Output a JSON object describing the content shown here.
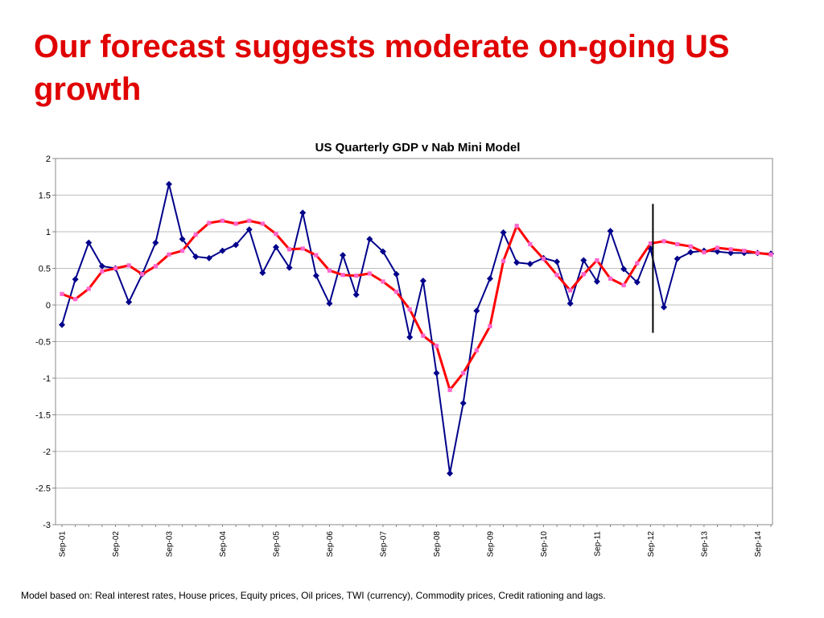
{
  "slide": {
    "title": "Our forecast suggests moderate on-going US growth",
    "footnote": "Model based on: Real interest rates, House prices, Equity prices, Oil prices, TWI (currency), Commodity prices, Credit rationing and lags."
  },
  "chart_data": {
    "type": "line",
    "title": "US Quarterly GDP v Nab Mini Model",
    "xlabel": "",
    "ylabel": "",
    "ylim": [
      -3,
      2
    ],
    "yticks": [
      "2",
      "1.5",
      "1",
      "0.5",
      "0",
      "-0.5",
      "-1",
      "-1.5",
      "-2",
      "-2.5",
      "-3"
    ],
    "ytick_values": [
      2,
      1.5,
      1,
      0.5,
      0,
      -0.5,
      -1,
      -1.5,
      -2,
      -2.5,
      -3
    ],
    "x": [
      "Sep-01",
      "Dec-01",
      "Mar-02",
      "Jun-02",
      "Sep-02",
      "Dec-02",
      "Mar-03",
      "Jun-03",
      "Sep-03",
      "Dec-03",
      "Mar-04",
      "Jun-04",
      "Sep-04",
      "Dec-04",
      "Mar-05",
      "Jun-05",
      "Sep-05",
      "Dec-05",
      "Mar-06",
      "Jun-06",
      "Sep-06",
      "Dec-06",
      "Mar-07",
      "Jun-07",
      "Sep-07",
      "Dec-07",
      "Mar-08",
      "Jun-08",
      "Sep-08",
      "Dec-08",
      "Mar-09",
      "Jun-09",
      "Sep-09",
      "Dec-09",
      "Mar-10",
      "Jun-10",
      "Sep-10",
      "Dec-10",
      "Mar-11",
      "Jun-11",
      "Sep-11",
      "Dec-11",
      "Mar-12",
      "Jun-12",
      "Sep-12",
      "Dec-12",
      "Mar-13",
      "Jun-13",
      "Sep-13",
      "Dec-13",
      "Mar-14",
      "Jun-14",
      "Sep-14",
      "Dec-14"
    ],
    "xtick_labels": [
      "Sep-01",
      "Sep-02",
      "Sep-03",
      "Sep-04",
      "Sep-05",
      "Sep-06",
      "Sep-07",
      "Sep-08",
      "Sep-09",
      "Sep-10",
      "Sep-11",
      "Sep-12",
      "Sep-13",
      "Sep-14"
    ],
    "xtick_indices": [
      0,
      4,
      8,
      12,
      16,
      20,
      24,
      28,
      32,
      36,
      40,
      44,
      48,
      52
    ],
    "forecast_marker_x": "Sep-12",
    "grid": "horizontal",
    "legend": "none",
    "series": [
      {
        "color": "#00008b",
        "marker": "diamond",
        "values": [
          -0.27,
          0.35,
          0.85,
          0.53,
          0.5,
          0.04,
          0.42,
          0.85,
          1.65,
          0.9,
          0.66,
          0.64,
          0.74,
          0.82,
          1.03,
          0.44,
          0.79,
          0.51,
          1.26,
          0.4,
          0.02,
          0.68,
          0.14,
          0.9,
          0.73,
          0.42,
          -0.44,
          0.33,
          -0.93,
          -2.3,
          -1.34,
          -0.08,
          0.36,
          0.99,
          0.58,
          0.56,
          0.64,
          0.59,
          0.02,
          0.61,
          0.32,
          1.01,
          0.49,
          0.31,
          0.77,
          -0.03,
          0.63,
          0.72,
          0.74,
          0.73,
          0.71,
          0.71,
          0.71,
          0.7
        ]
      },
      {
        "color": "#ff0000",
        "marker": "square",
        "marker_color": "#ff66cc",
        "values": [
          0.15,
          0.08,
          0.22,
          0.46,
          0.5,
          0.54,
          0.42,
          0.53,
          0.69,
          0.74,
          0.96,
          1.12,
          1.15,
          1.11,
          1.15,
          1.11,
          0.97,
          0.76,
          0.77,
          0.68,
          0.47,
          0.41,
          0.4,
          0.43,
          0.32,
          0.18,
          -0.06,
          -0.42,
          -0.56,
          -1.16,
          -0.93,
          -0.62,
          -0.29,
          0.6,
          1.08,
          0.83,
          0.63,
          0.41,
          0.2,
          0.42,
          0.61,
          0.36,
          0.27,
          0.57,
          0.84,
          0.87,
          0.83,
          0.8,
          0.72,
          0.78,
          0.76,
          0.74,
          0.71,
          0.69
        ]
      }
    ]
  }
}
